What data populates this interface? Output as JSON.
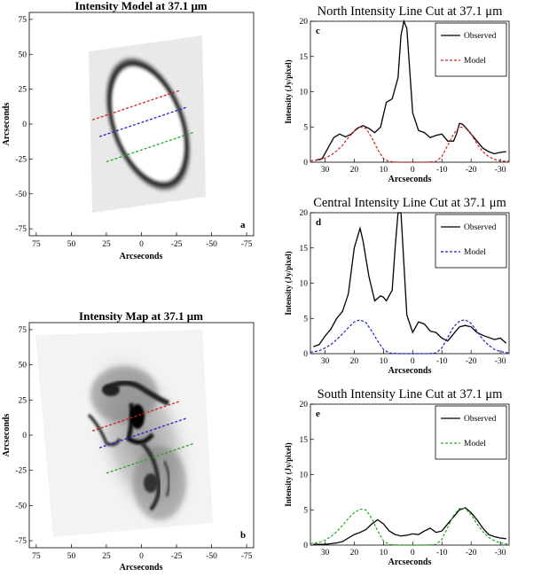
{
  "panels": {
    "a": {
      "title": "Intensity Model at 37.1 μm",
      "letter": "a",
      "xlabel": "Arcseconds",
      "ylabel": "Arcseconds",
      "xticks": [
        "75",
        "50",
        "25",
        "0",
        "-25",
        "-50",
        "-75"
      ],
      "yticks": [
        "75",
        "50",
        "25",
        "0",
        "-25",
        "-50",
        "-75"
      ]
    },
    "b": {
      "title": "Intensity Map at 37.1 μm",
      "letter": "b",
      "xlabel": "Arcseconds",
      "ylabel": "Arcseconds",
      "xticks": [
        "75",
        "50",
        "25",
        "0",
        "-25",
        "-50",
        "-75"
      ],
      "yticks": [
        "75",
        "50",
        "25",
        "0",
        "-25",
        "-50",
        "-75"
      ]
    }
  },
  "colors": {
    "north_cut": "#cc2222",
    "central_cut": "#2222cc",
    "south_cut": "#22aa22",
    "observed": "#000000"
  },
  "chart_data": [
    {
      "type": "image",
      "title": "Intensity Model at 37.1 μm",
      "xlabel": "Arcseconds",
      "ylabel": "Arcseconds",
      "xlim": [
        80,
        -80
      ],
      "ylim": [
        -80,
        80
      ],
      "cut_lines": [
        {
          "color": "red",
          "from": [
            35,
            3
          ],
          "to": [
            -27,
            24
          ]
        },
        {
          "color": "blue",
          "from": [
            30,
            -9
          ],
          "to": [
            -32,
            12
          ]
        },
        {
          "color": "green",
          "from": [
            25,
            -27
          ],
          "to": [
            -37,
            -6
          ]
        }
      ]
    },
    {
      "type": "image",
      "title": "Intensity Map at 37.1 μm",
      "xlabel": "Arcseconds",
      "ylabel": "Arcseconds",
      "xlim": [
        80,
        -80
      ],
      "ylim": [
        -80,
        80
      ],
      "cut_lines": [
        {
          "color": "red",
          "from": [
            35,
            3
          ],
          "to": [
            -27,
            24
          ]
        },
        {
          "color": "blue",
          "from": [
            30,
            -9
          ],
          "to": [
            -32,
            12
          ]
        },
        {
          "color": "green",
          "from": [
            25,
            -27
          ],
          "to": [
            -37,
            -6
          ]
        }
      ]
    },
    {
      "type": "line",
      "letter": "c",
      "title": "North Intensity Line Cut at 37.1 μm",
      "xlabel": "Arcseconds",
      "ylabel": "Intensity (Jy/pixel)",
      "xlim": [
        35,
        -33
      ],
      "ylim": [
        0,
        20
      ],
      "xticks": [
        30,
        20,
        10,
        0,
        -10,
        -20,
        -30
      ],
      "xtick_labels": [
        "30",
        "20",
        "10",
        "0",
        "-10",
        "-20",
        "-30"
      ],
      "yticks": [
        0,
        5,
        10,
        15,
        20
      ],
      "ytick_labels": [
        "0",
        "5",
        "10",
        "15",
        "20"
      ],
      "legend": [
        "Observed",
        "Model"
      ],
      "series": [
        {
          "name": "Observed",
          "color": "#000000",
          "dash": "solid",
          "x": [
            33,
            31,
            29,
            27,
            25,
            23,
            21,
            19,
            17,
            15,
            13,
            11,
            9,
            7,
            5,
            4,
            3,
            2,
            0,
            -2,
            -4,
            -6,
            -8,
            -10,
            -12,
            -14,
            -15,
            -16,
            -17,
            -18,
            -20,
            -22,
            -24,
            -26,
            -28,
            -30,
            -32
          ],
          "y": [
            0.3,
            0.5,
            2.0,
            3.5,
            4.0,
            3.6,
            4.0,
            4.8,
            5.2,
            4.8,
            4.2,
            5.0,
            8.5,
            9.0,
            12.0,
            18.0,
            20.0,
            19.0,
            7.0,
            4.5,
            4.2,
            3.5,
            3.8,
            4.0,
            3.0,
            3.0,
            4.0,
            5.5,
            5.4,
            5.0,
            4.0,
            3.0,
            2.0,
            1.5,
            1.2,
            1.4,
            1.5
          ]
        },
        {
          "name": "Model",
          "color": "#cc2222",
          "dash": "dashed",
          "x": [
            35,
            32,
            30,
            28,
            26,
            24,
            22,
            20,
            18,
            16,
            14,
            12,
            10,
            8,
            5,
            0,
            -5,
            -8,
            -10,
            -12,
            -14,
            -16,
            -18,
            -20,
            -22,
            -24,
            -26,
            -28,
            -30,
            -33
          ],
          "y": [
            0.2,
            0.3,
            0.6,
            1.0,
            1.6,
            2.4,
            3.5,
            4.4,
            5.0,
            4.8,
            3.5,
            1.8,
            0.5,
            0.1,
            0,
            0,
            0,
            0.1,
            0.8,
            2.4,
            4.0,
            5.0,
            4.9,
            4.0,
            2.6,
            1.5,
            0.8,
            0.4,
            0.2,
            0.1
          ]
        }
      ]
    },
    {
      "type": "line",
      "letter": "d",
      "title": "Central Intensity Line Cut at 37.1 μm",
      "xlabel": "Arcseconds",
      "ylabel": "Intensity (Jy/pixel)",
      "xlim": [
        35,
        -33
      ],
      "ylim": [
        0,
        20
      ],
      "xticks": [
        30,
        20,
        10,
        0,
        -10,
        -20,
        -30
      ],
      "xtick_labels": [
        "30",
        "20",
        "10",
        "0",
        "-10",
        "-20",
        "-30"
      ],
      "yticks": [
        0,
        5,
        10,
        15,
        20
      ],
      "ytick_labels": [
        "0",
        "5",
        "10",
        "15",
        "20"
      ],
      "legend": [
        "Observed",
        "Model"
      ],
      "series": [
        {
          "name": "Observed",
          "color": "#000000",
          "dash": "solid",
          "x": [
            34,
            32,
            30,
            28,
            26,
            24,
            22,
            20,
            18,
            17,
            15,
            13,
            11,
            10,
            9,
            7,
            6,
            5,
            4,
            2,
            0,
            -2,
            -4,
            -6,
            -8,
            -10,
            -12,
            -14,
            -16,
            -18,
            -20,
            -22,
            -24,
            -26,
            -28,
            -30,
            -32
          ],
          "y": [
            1.0,
            1.3,
            2.5,
            3.5,
            5.0,
            6.0,
            8.5,
            15.0,
            17.8,
            16.0,
            11.0,
            7.5,
            8.2,
            8.0,
            7.5,
            9.0,
            15.0,
            20.0,
            20.0,
            5.5,
            3.0,
            4.5,
            4.2,
            3.2,
            3.0,
            2.2,
            1.8,
            2.8,
            3.8,
            4.0,
            3.8,
            3.0,
            2.6,
            2.3,
            2.0,
            2.2,
            1.5
          ]
        },
        {
          "name": "Model",
          "color": "#2222cc",
          "dash": "dashed",
          "x": [
            35,
            32,
            30,
            28,
            26,
            24,
            22,
            20,
            18,
            16,
            14,
            12,
            10,
            8,
            5,
            0,
            -5,
            -8,
            -10,
            -12,
            -14,
            -16,
            -18,
            -20,
            -22,
            -24,
            -26,
            -28,
            -30,
            -33
          ],
          "y": [
            0.2,
            0.4,
            0.8,
            1.3,
            2.0,
            2.8,
            3.7,
            4.5,
            4.8,
            4.4,
            3.2,
            1.8,
            0.6,
            0.1,
            0,
            0,
            0,
            0.1,
            0.8,
            2.3,
            3.8,
            4.6,
            4.8,
            4.3,
            3.2,
            2.0,
            1.2,
            0.6,
            0.3,
            0.1
          ]
        }
      ]
    },
    {
      "type": "line",
      "letter": "e",
      "title": "South Intensity Line Cut at 37.1 μm",
      "xlabel": "Arcseconds",
      "ylabel": "Intensity (Jy/pixel)",
      "xlim": [
        35,
        -33
      ],
      "ylim": [
        0,
        20
      ],
      "xticks": [
        30,
        20,
        10,
        0,
        -10,
        -20,
        -30
      ],
      "xtick_labels": [
        "30",
        "20",
        "10",
        "0",
        "-10",
        "-20",
        "-30"
      ],
      "yticks": [
        0,
        5,
        10,
        15,
        20
      ],
      "ytick_labels": [
        "0",
        "5",
        "10",
        "15",
        "20"
      ],
      "legend": [
        "Observed",
        "Model"
      ],
      "series": [
        {
          "name": "Observed",
          "color": "#000000",
          "dash": "solid",
          "x": [
            34,
            32,
            30,
            28,
            26,
            24,
            22,
            20,
            18,
            16,
            14,
            12,
            10,
            8,
            6,
            4,
            2,
            0,
            -2,
            -4,
            -6,
            -8,
            -10,
            -12,
            -14,
            -16,
            -18,
            -20,
            -22,
            -24,
            -26,
            -28,
            -30,
            -32
          ],
          "y": [
            0.1,
            0.1,
            0.1,
            0.2,
            0.3,
            0.5,
            1.0,
            1.5,
            1.8,
            2.2,
            3.0,
            3.6,
            3.0,
            2.0,
            1.5,
            1.3,
            1.4,
            1.6,
            1.5,
            2.0,
            2.4,
            1.8,
            2.0,
            3.0,
            4.0,
            5.0,
            5.3,
            4.6,
            3.6,
            2.4,
            1.5,
            1.2,
            1.0,
            0.9
          ]
        },
        {
          "name": "Model",
          "color": "#22aa22",
          "dash": "dashed",
          "x": [
            35,
            32,
            30,
            28,
            26,
            24,
            22,
            20,
            18,
            16,
            14,
            12,
            10,
            8,
            5,
            0,
            -5,
            -8,
            -10,
            -12,
            -14,
            -16,
            -18,
            -20,
            -22,
            -24,
            -26,
            -28,
            -30,
            -33
          ],
          "y": [
            0.2,
            0.4,
            0.7,
            1.2,
            1.9,
            2.8,
            3.8,
            4.6,
            5.1,
            5.0,
            3.8,
            2.0,
            0.6,
            0.1,
            0,
            0,
            0,
            0.1,
            0.8,
            2.5,
            4.2,
            5.2,
            5.2,
            4.3,
            3.0,
            1.9,
            1.1,
            0.6,
            0.3,
            0.1
          ]
        }
      ]
    }
  ]
}
